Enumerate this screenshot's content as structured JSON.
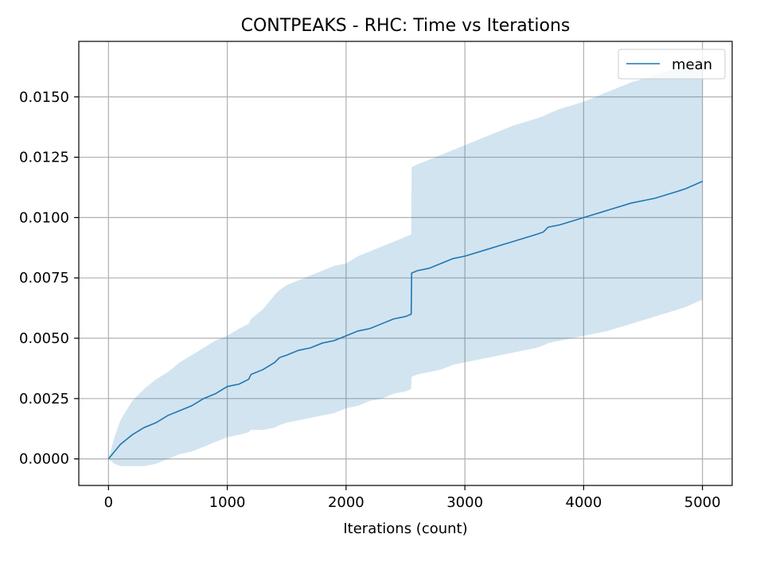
{
  "chart_data": {
    "type": "line",
    "title": "CONTPEAKS - RHC: Time vs Iterations",
    "xlabel": "Iterations (count)",
    "ylabel": "",
    "xlim": [
      -250,
      5250
    ],
    "ylim": [
      -0.0011,
      0.0173
    ],
    "x_ticks": [
      0,
      1000,
      2000,
      3000,
      4000,
      5000
    ],
    "x_tick_labels": [
      "0",
      "1000",
      "2000",
      "3000",
      "4000",
      "5000"
    ],
    "y_ticks": [
      0.0,
      0.0025,
      0.005,
      0.0075,
      0.01,
      0.0125,
      0.015
    ],
    "y_tick_labels": [
      "0.0000",
      "0.0025",
      "0.0050",
      "0.0075",
      "0.0100",
      "0.0125",
      "0.0150"
    ],
    "grid": true,
    "legend_position": "top-right",
    "colors": {
      "line": "#1f77b4",
      "band": "#1f77b4",
      "grid": "#b0b0b0",
      "axes": "#000000"
    },
    "series": [
      {
        "name": "mean",
        "x": [
          0,
          50,
          100,
          150,
          200,
          300,
          400,
          500,
          600,
          700,
          800,
          900,
          1000,
          1100,
          1180,
          1200,
          1300,
          1400,
          1440,
          1500,
          1600,
          1700,
          1800,
          1900,
          2000,
          2100,
          2200,
          2300,
          2400,
          2500,
          2548,
          2552,
          2600,
          2700,
          2800,
          2900,
          3000,
          3200,
          3400,
          3600,
          3660,
          3700,
          3800,
          4000,
          4200,
          4400,
          4600,
          4800,
          4860,
          5000
        ],
        "mean": [
          0.0,
          0.0003,
          0.0006,
          0.0008,
          0.001,
          0.0013,
          0.0015,
          0.0018,
          0.002,
          0.0022,
          0.0025,
          0.0027,
          0.003,
          0.0031,
          0.0033,
          0.0035,
          0.0037,
          0.004,
          0.0042,
          0.0043,
          0.0045,
          0.0046,
          0.0048,
          0.0049,
          0.0051,
          0.0053,
          0.0054,
          0.0056,
          0.0058,
          0.0059,
          0.006,
          0.0077,
          0.0078,
          0.0079,
          0.0081,
          0.0083,
          0.0084,
          0.0087,
          0.009,
          0.0093,
          0.0094,
          0.0096,
          0.0097,
          0.01,
          0.0103,
          0.0106,
          0.0108,
          0.0111,
          0.0112,
          0.0115
        ],
        "upper": [
          0.0,
          0.0009,
          0.0016,
          0.002,
          0.0024,
          0.0029,
          0.0033,
          0.0036,
          0.004,
          0.0043,
          0.0046,
          0.0049,
          0.0051,
          0.0054,
          0.0056,
          0.0058,
          0.0062,
          0.0068,
          0.007,
          0.0072,
          0.0074,
          0.0076,
          0.0078,
          0.008,
          0.0081,
          0.0084,
          0.0086,
          0.0088,
          0.009,
          0.0092,
          0.0093,
          0.0121,
          0.0122,
          0.0124,
          0.0126,
          0.0128,
          0.013,
          0.0134,
          0.0138,
          0.0141,
          0.0142,
          0.0143,
          0.0145,
          0.0148,
          0.0152,
          0.0156,
          0.0159,
          0.0162,
          0.0163,
          0.0163
        ],
        "lower": [
          0.0,
          -0.0002,
          -0.0003,
          -0.0003,
          -0.0003,
          -0.0003,
          -0.0002,
          0.0,
          0.0002,
          0.0003,
          0.0005,
          0.0007,
          0.0009,
          0.001,
          0.0011,
          0.0012,
          0.0012,
          0.0013,
          0.0014,
          0.0015,
          0.0016,
          0.0017,
          0.0018,
          0.0019,
          0.0021,
          0.0022,
          0.0024,
          0.0025,
          0.0027,
          0.0028,
          0.0029,
          0.0034,
          0.0035,
          0.0036,
          0.0037,
          0.0039,
          0.004,
          0.0042,
          0.0044,
          0.0046,
          0.0047,
          0.0048,
          0.0049,
          0.0051,
          0.0053,
          0.0056,
          0.0059,
          0.0062,
          0.0063,
          0.0066
        ]
      }
    ]
  }
}
